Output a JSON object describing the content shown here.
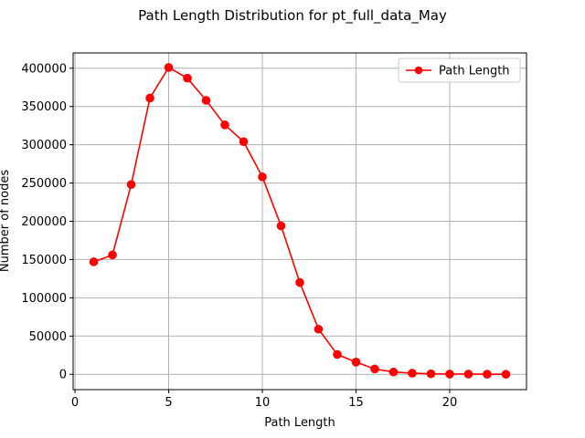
{
  "chart_data": {
    "type": "line",
    "title": "Path Length Distribution for pt_full_data_May",
    "xlabel": "Path Length",
    "ylabel": "Number of nodes",
    "xlim": [
      -0.1,
      24.1
    ],
    "ylim": [
      -20000,
      420000
    ],
    "xticks": [
      0,
      5,
      10,
      15,
      20
    ],
    "yticks": [
      0,
      50000,
      100000,
      150000,
      200000,
      250000,
      300000,
      350000,
      400000
    ],
    "grid": true,
    "legend_position": "top-right",
    "colors": {
      "series": "#ff0000",
      "grid": "#b0b0b0"
    },
    "series": [
      {
        "name": "Path Length",
        "x": [
          1,
          2,
          3,
          4,
          5,
          6,
          7,
          8,
          9,
          10,
          11,
          12,
          13,
          14,
          15,
          16,
          17,
          18,
          19,
          20,
          21,
          22,
          23
        ],
        "y": [
          147000,
          156000,
          248000,
          361000,
          401000,
          387000,
          358000,
          326000,
          304000,
          258000,
          194000,
          120000,
          59000,
          26000,
          16000,
          7000,
          3000,
          1500,
          700,
          400,
          300,
          200,
          100
        ]
      }
    ]
  }
}
